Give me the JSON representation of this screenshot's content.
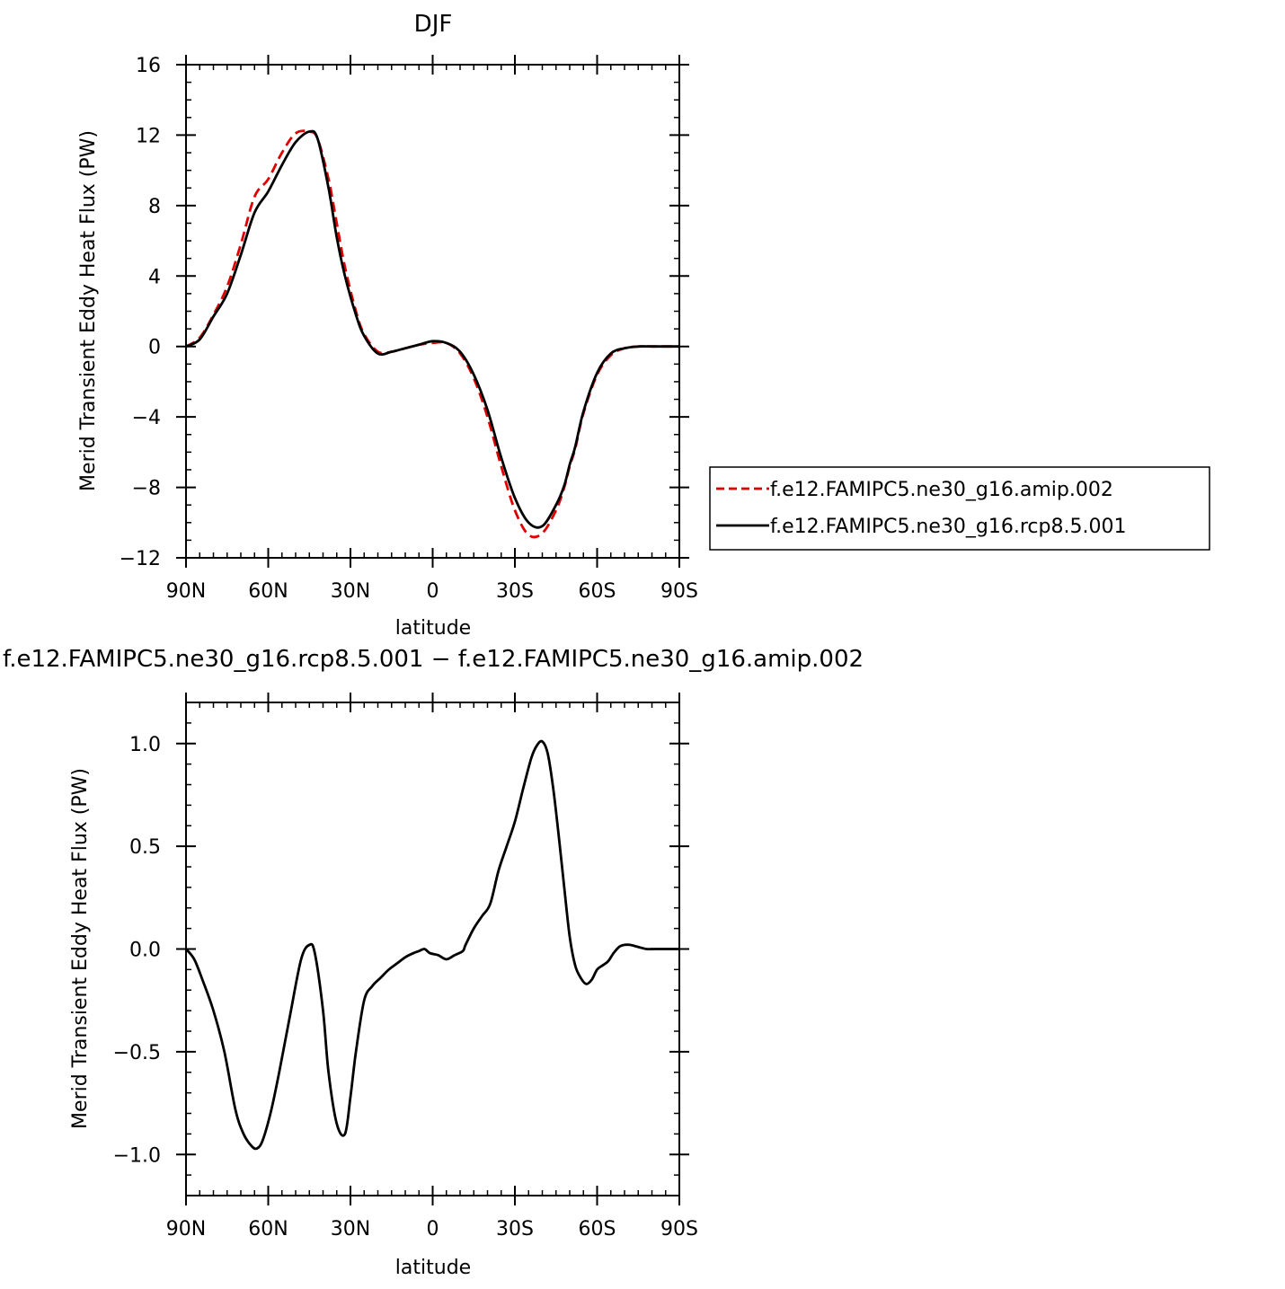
{
  "chart_data": [
    {
      "type": "line",
      "title": "DJF",
      "xlabel": "latitude",
      "ylabel": "Merid Transient Eddy Heat Flux (PW)",
      "xlim": [
        90,
        -90
      ],
      "ylim": [
        -12,
        16
      ],
      "x_major_ticks": [
        90,
        60,
        30,
        0,
        -30,
        -60,
        -90
      ],
      "x_tick_labels": [
        "90N",
        "60N",
        "30N",
        "0",
        "30S",
        "60S",
        "90S"
      ],
      "y_major_ticks": [
        16,
        12,
        8,
        4,
        0,
        -4,
        -8,
        -12
      ],
      "y_tick_labels": [
        "16",
        "12",
        "8",
        "4",
        "0",
        "−4",
        "−8",
        "−12"
      ],
      "grid": false,
      "legend_placement": "right, outside plot",
      "x": [
        90,
        85,
        80,
        75,
        70,
        65,
        60,
        55,
        50,
        45,
        42,
        38,
        35,
        32,
        28,
        25,
        20,
        15,
        10,
        5,
        0,
        -5,
        -10,
        -15,
        -20,
        -25,
        -30,
        -35,
        -40,
        -45,
        -48,
        -50,
        -52,
        -55,
        -60,
        -65,
        -70,
        -75,
        -80,
        -85,
        -90
      ],
      "series": [
        {
          "name": "f.e12.FAMIPC5.ne30_g16.amip.002",
          "color": "#e00000",
          "dash": "dashed",
          "values": [
            0,
            0.5,
            1.8,
            3.4,
            5.8,
            8.5,
            9.5,
            11.0,
            12.1,
            12.2,
            11.8,
            9.5,
            7.0,
            4.5,
            2.0,
            0.7,
            -0.3,
            -0.3,
            -0.1,
            0.1,
            0.2,
            0.2,
            -0.4,
            -1.8,
            -4.0,
            -6.8,
            -9.3,
            -10.7,
            -10.6,
            -9.3,
            -8.0,
            -6.8,
            -5.8,
            -3.8,
            -1.6,
            -0.5,
            -0.1,
            0,
            0,
            0,
            0
          ]
        },
        {
          "name": "f.e12.FAMIPC5.ne30_g16.rcp8.5.001",
          "color": "#000000",
          "dash": "solid",
          "values": [
            0,
            0.4,
            1.7,
            3.0,
            5.2,
            7.6,
            8.8,
            10.3,
            11.6,
            12.2,
            11.8,
            9.0,
            6.2,
            4.0,
            1.8,
            0.6,
            -0.4,
            -0.3,
            -0.1,
            0.1,
            0.3,
            0.2,
            -0.3,
            -1.6,
            -3.6,
            -6.3,
            -8.6,
            -10.0,
            -10.2,
            -9.0,
            -7.9,
            -6.7,
            -5.7,
            -3.7,
            -1.5,
            -0.4,
            -0.1,
            0,
            0,
            0,
            0
          ]
        }
      ]
    },
    {
      "type": "line",
      "title": "f.e12.FAMIPC5.ne30_g16.rcp8.5.001 − f.e12.FAMIPC5.ne30_g16.amip.002",
      "xlabel": "latitude",
      "ylabel": "Merid Transient Eddy Heat Flux (PW)",
      "xlim": [
        90,
        -90
      ],
      "ylim": [
        -1.2,
        1.2
      ],
      "x_major_ticks": [
        90,
        60,
        30,
        0,
        -30,
        -60,
        -90
      ],
      "x_tick_labels": [
        "90N",
        "60N",
        "30N",
        "0",
        "30S",
        "60S",
        "90S"
      ],
      "y_major_ticks": [
        1.0,
        0.5,
        0.0,
        -0.5,
        -1.0
      ],
      "y_tick_labels": [
        "1.0",
        "0.5",
        "0.0",
        "−0.5",
        "−1.0"
      ],
      "grid": false,
      "x": [
        90,
        87,
        84,
        80,
        76,
        72,
        69,
        66,
        64,
        62,
        59,
        56,
        52,
        48,
        45,
        43,
        40,
        38,
        35,
        32,
        30,
        28,
        25,
        22,
        19,
        16,
        13,
        10,
        7,
        5,
        3,
        1,
        -2,
        -5,
        -8,
        -11,
        -12,
        -15,
        -18,
        -21,
        -24,
        -27,
        -30,
        -33,
        -36,
        -38,
        -40,
        -42,
        -44,
        -46,
        -48,
        -50,
        -52,
        -54,
        -56,
        -58,
        -60,
        -62,
        -64,
        -66,
        -68,
        -70,
        -72,
        -75,
        -78,
        -81,
        -84,
        -87,
        -90
      ],
      "series": [
        {
          "name": "",
          "color": "#000000",
          "dash": "solid",
          "values": [
            0,
            -0.05,
            -0.15,
            -0.3,
            -0.5,
            -0.78,
            -0.9,
            -0.96,
            -0.97,
            -0.93,
            -0.79,
            -0.6,
            -0.32,
            -0.05,
            0.02,
            -0.02,
            -0.3,
            -0.6,
            -0.85,
            -0.9,
            -0.72,
            -0.5,
            -0.25,
            -0.18,
            -0.14,
            -0.1,
            -0.07,
            -0.04,
            -0.02,
            -0.01,
            0,
            -0.02,
            -0.03,
            -0.05,
            -0.03,
            -0.01,
            0.02,
            0.1,
            0.16,
            0.22,
            0.38,
            0.5,
            0.62,
            0.78,
            0.93,
            0.99,
            1.01,
            0.95,
            0.78,
            0.55,
            0.3,
            0.06,
            -0.08,
            -0.14,
            -0.17,
            -0.15,
            -0.1,
            -0.08,
            -0.06,
            -0.02,
            0.01,
            0.02,
            0.02,
            0.01,
            0,
            0,
            0,
            0,
            0
          ]
        }
      ]
    }
  ]
}
